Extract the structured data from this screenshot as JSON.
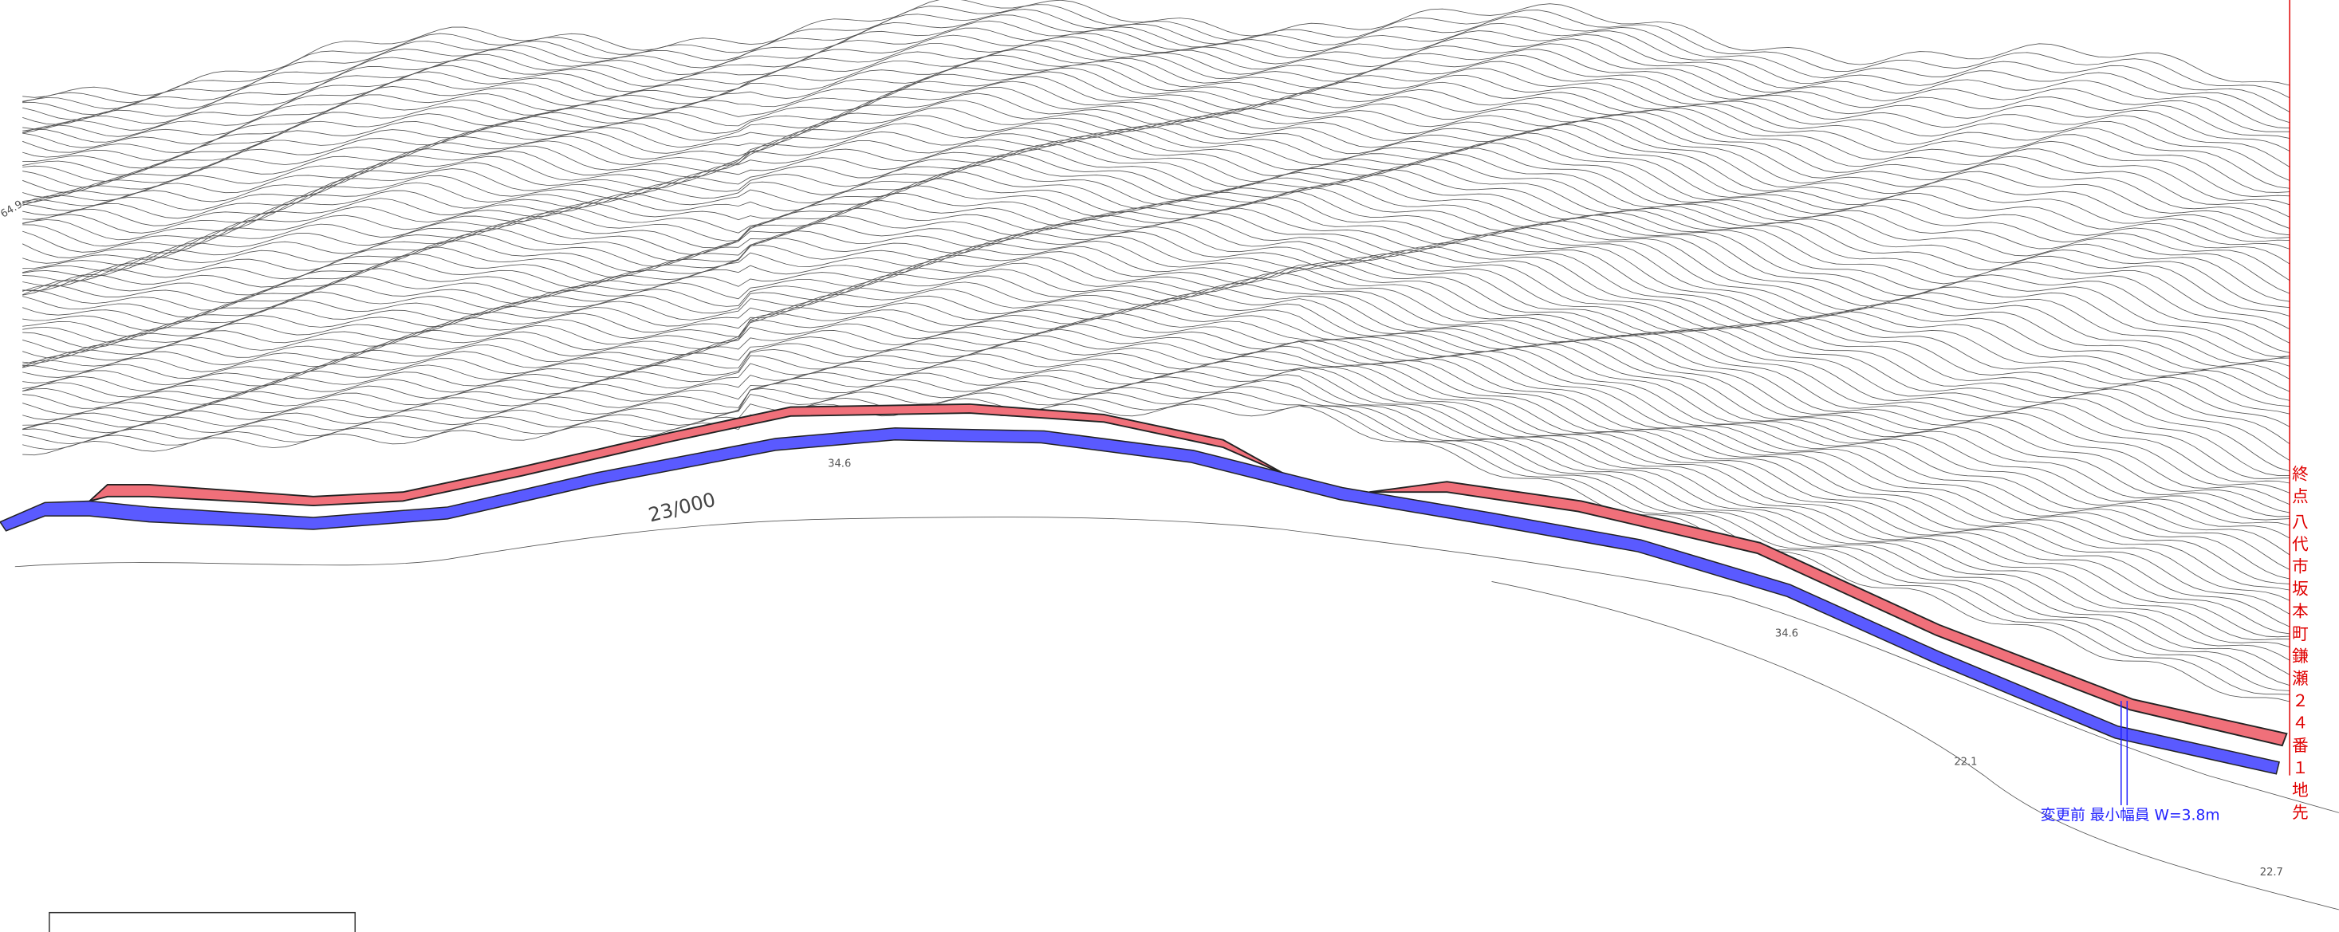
{
  "end_point": {
    "label": "終点",
    "address": "八代市坂本町鎌瀬２４番１地先"
  },
  "before_change": "変更前 最小幅員 W=3.8m",
  "scale_mark": "23/000",
  "elevations": [
    "64.9",
    "34.6",
    "34.6",
    "22.1",
    "22.7"
  ]
}
